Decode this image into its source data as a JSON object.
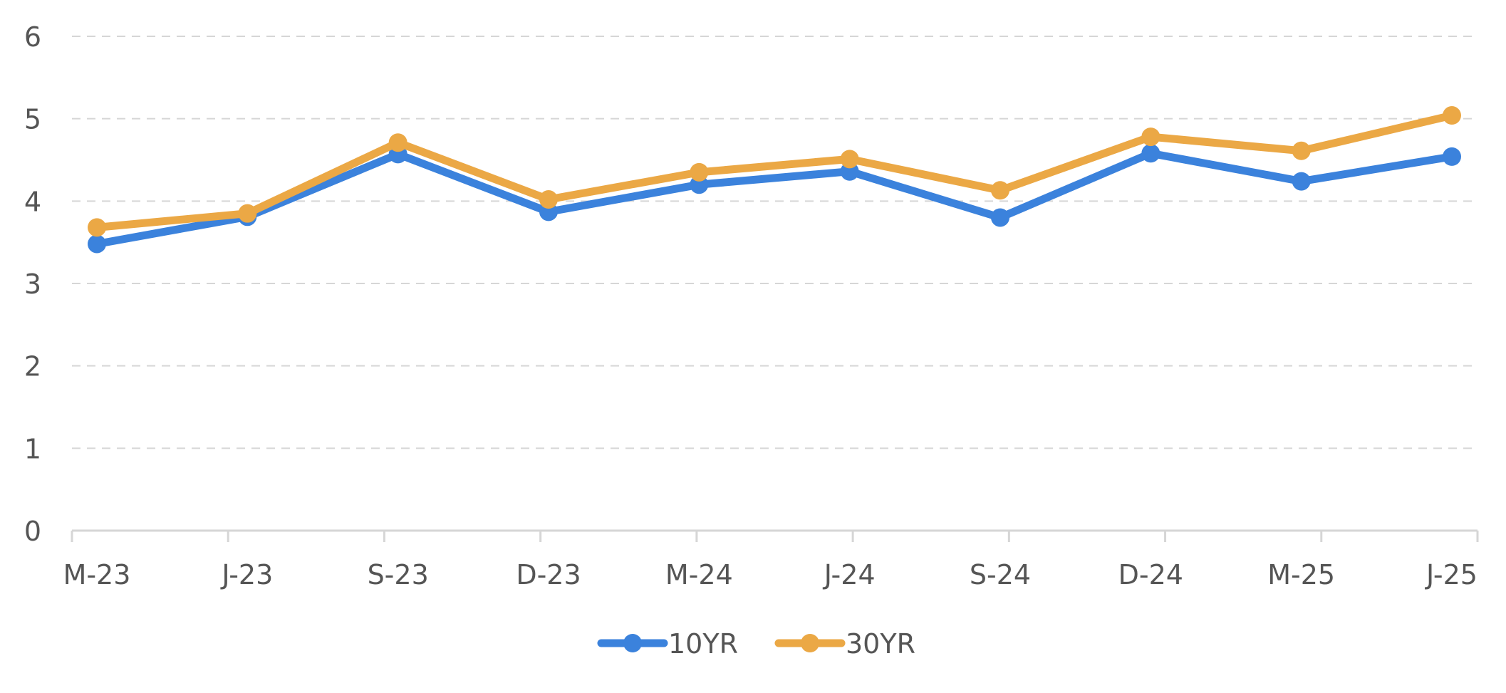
{
  "chart_data": {
    "type": "line",
    "categories": [
      "M-23",
      "J-23",
      "S-23",
      "D-23",
      "M-24",
      "J-24",
      "S-24",
      "D-24",
      "M-25",
      "J-25"
    ],
    "series": [
      {
        "name": "10YR",
        "color": "#3b82dc",
        "values": [
          3.48,
          3.81,
          4.57,
          3.87,
          4.2,
          4.36,
          3.8,
          4.58,
          4.24,
          4.54
        ]
      },
      {
        "name": "30YR",
        "color": "#eba845",
        "values": [
          3.68,
          3.85,
          4.71,
          4.02,
          4.35,
          4.51,
          4.13,
          4.78,
          4.61,
          5.04
        ]
      }
    ],
    "y_ticks": [
      "0",
      "1",
      "2",
      "3",
      "4",
      "5",
      "6"
    ],
    "ylim": [
      0,
      6
    ],
    "grid": true,
    "grid_style": "dashed",
    "legend_position": "bottom-center"
  }
}
